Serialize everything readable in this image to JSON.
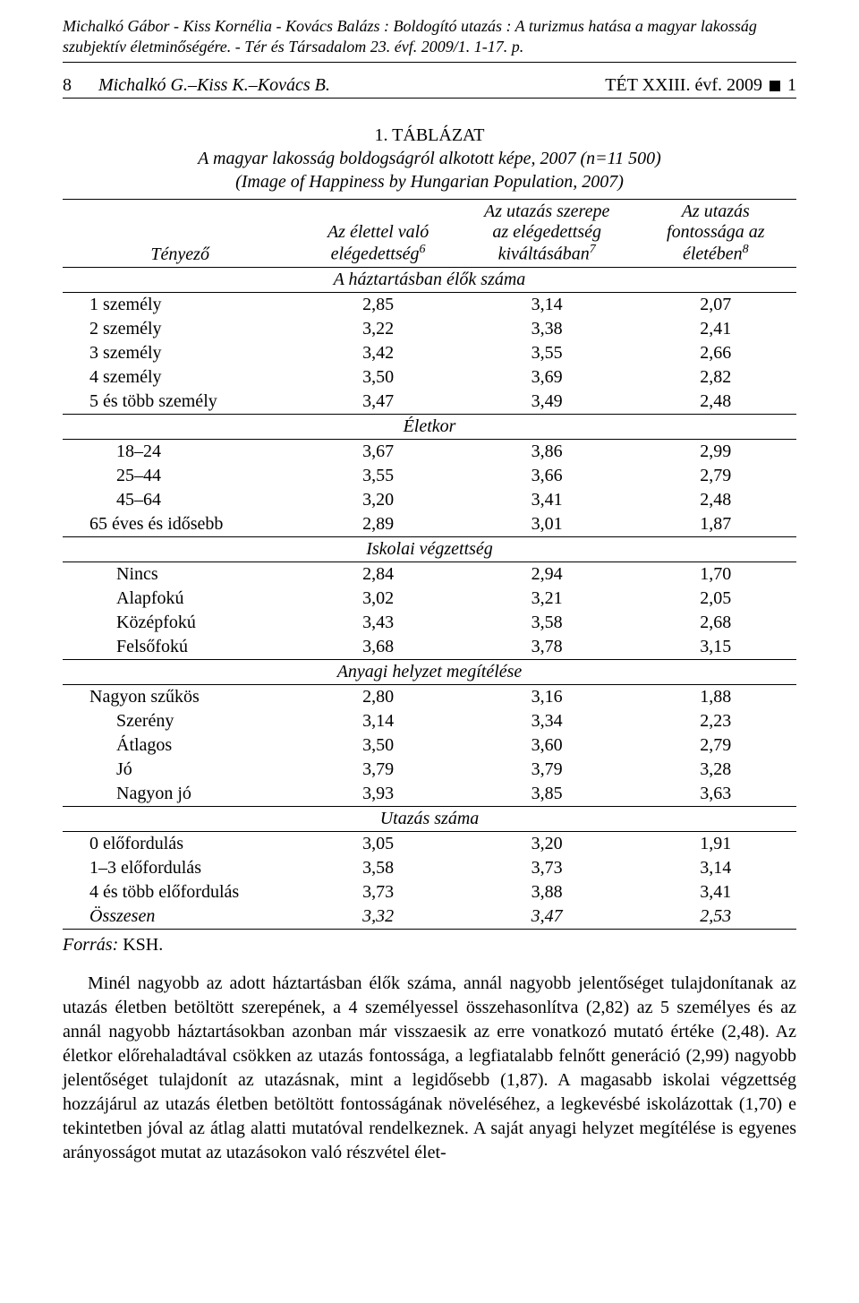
{
  "running_header": "Michalkó Gábor - Kiss Kornélia - Kovács Balázs : Boldogító utazás : A turizmus hatása a magyar lakosság szubjektív életminőségére. - Tér és Társadalom 23. évf. 2009/1. 1-17. p.",
  "page_number": "8",
  "authors_short": "Michalkó G.–Kiss K.–Kovács B.",
  "journal_right_a": "TÉT XXIII. évf. 2009",
  "journal_right_b": "1",
  "caption": {
    "line1": "1. TÁBLÁZAT",
    "line2": "A magyar lakosság boldogságról alkotott képe, 2007 (n=11 500)",
    "line3": "(Image of Happiness by Hungarian Population, 2007)"
  },
  "headers": {
    "factor": "Tényező",
    "col1_a": "Az élettel való",
    "col1_b": "elégedettség",
    "col1_sup": "6",
    "col2_a": "Az utazás szerepe",
    "col2_b": "az elégedettség",
    "col2_c": "kiváltásában",
    "col2_sup": "7",
    "col3_a": "Az utazás",
    "col3_b": "fontossága az",
    "col3_c": "életében",
    "col3_sup": "8"
  },
  "sections": [
    {
      "title": "A háztartásban élők száma",
      "rows": [
        {
          "label": "1 személy",
          "c1": "2,85",
          "c2": "3,14",
          "c3": "2,07"
        },
        {
          "label": "2 személy",
          "c1": "3,22",
          "c2": "3,38",
          "c3": "2,41"
        },
        {
          "label": "3 személy",
          "c1": "3,42",
          "c2": "3,55",
          "c3": "2,66"
        },
        {
          "label": "4 személy",
          "c1": "3,50",
          "c2": "3,69",
          "c3": "2,82"
        },
        {
          "label": "5 és több személy",
          "c1": "3,47",
          "c2": "3,49",
          "c3": "2,48"
        }
      ]
    },
    {
      "title": "Életkor",
      "rows": [
        {
          "label": "18–24",
          "c1": "3,67",
          "c2": "3,86",
          "c3": "2,99",
          "indent": true
        },
        {
          "label": "25–44",
          "c1": "3,55",
          "c2": "3,66",
          "c3": "2,79",
          "indent": true
        },
        {
          "label": "45–64",
          "c1": "3,20",
          "c2": "3,41",
          "c3": "2,48",
          "indent": true
        },
        {
          "label": "65 éves és idősebb",
          "c1": "2,89",
          "c2": "3,01",
          "c3": "1,87"
        }
      ]
    },
    {
      "title": "Iskolai végzettség",
      "rows": [
        {
          "label": "Nincs",
          "c1": "2,84",
          "c2": "2,94",
          "c3": "1,70",
          "indent": true
        },
        {
          "label": "Alapfokú",
          "c1": "3,02",
          "c2": "3,21",
          "c3": "2,05",
          "indent": true
        },
        {
          "label": "Középfokú",
          "c1": "3,43",
          "c2": "3,58",
          "c3": "2,68",
          "indent": true
        },
        {
          "label": "Felsőfokú",
          "c1": "3,68",
          "c2": "3,78",
          "c3": "3,15",
          "indent": true
        }
      ]
    },
    {
      "title": "Anyagi helyzet megítélése",
      "rows": [
        {
          "label": "Nagyon szűkös",
          "c1": "2,80",
          "c2": "3,16",
          "c3": "1,88"
        },
        {
          "label": "Szerény",
          "c1": "3,14",
          "c2": "3,34",
          "c3": "2,23",
          "indent": true
        },
        {
          "label": "Átlagos",
          "c1": "3,50",
          "c2": "3,60",
          "c3": "2,79",
          "indent": true
        },
        {
          "label": "Jó",
          "c1": "3,79",
          "c2": "3,79",
          "c3": "3,28",
          "indent": true
        },
        {
          "label": "Nagyon jó",
          "c1": "3,93",
          "c2": "3,85",
          "c3": "3,63",
          "indent": true
        }
      ]
    },
    {
      "title": "Utazás száma",
      "rows": [
        {
          "label": "0 előfordulás",
          "c1": "3,05",
          "c2": "3,20",
          "c3": "1,91"
        },
        {
          "label": "1–3 előfordulás",
          "c1": "3,58",
          "c2": "3,73",
          "c3": "3,14"
        },
        {
          "label": "4 és több előfordulás",
          "c1": "3,73",
          "c2": "3,88",
          "c3": "3,41"
        },
        {
          "label": "Összesen",
          "c1": "3,32",
          "c2": "3,47",
          "c3": "2,53",
          "osszesen": true
        }
      ]
    }
  ],
  "source_label": "Forrás:",
  "source_value": "KSH.",
  "paragraph": "Minél nagyobb az adott háztartásban élők száma, annál nagyobb jelentőséget tulajdonítanak az utazás életben betöltött szerepének, a 4 személyessel összehasonlítva (2,82) az 5 személyes és az annál nagyobb háztartásokban azonban már visszaesik az erre vonatkozó mutató értéke (2,48). Az életkor előrehaladtával csökken az utazás fontossága, a legfiatalabb felnőtt generáció (2,99) nagyobb jelentőséget tulajdonít az utazásnak, mint a legidősebb (1,87). A magasabb iskolai végzettség hozzájárul az utazás életben betöltött fontosságának növeléséhez, a legkevésbé iskolázottak (1,70) e tekintetben jóval az átlag alatti mutatóval rendelkeznek. A saját anyagi helyzet megítélése is egyenes arányosságot mutat az utazásokon való részvétel élet-"
}
